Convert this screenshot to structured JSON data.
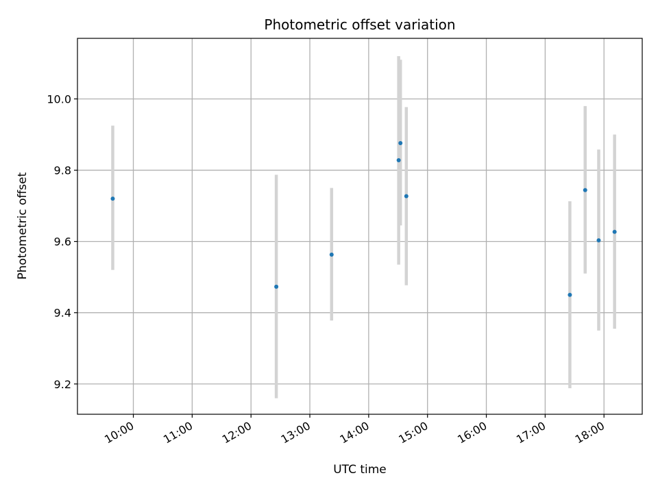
{
  "chart_data": {
    "type": "scatter",
    "title": "Photometric offset variation",
    "xlabel": "UTC time",
    "ylabel": "Photometric offset",
    "grid": true,
    "x_unit": "hour-of-day",
    "xlim": [
      9.05,
      18.65
    ],
    "ylim": [
      9.115,
      10.17
    ],
    "x_ticks": [
      {
        "value": 10,
        "label": "10:00"
      },
      {
        "value": 11,
        "label": "11:00"
      },
      {
        "value": 12,
        "label": "12:00"
      },
      {
        "value": 13,
        "label": "13:00"
      },
      {
        "value": 14,
        "label": "14:00"
      },
      {
        "value": 15,
        "label": "15:00"
      },
      {
        "value": 16,
        "label": "16:00"
      },
      {
        "value": 17,
        "label": "17:00"
      },
      {
        "value": 18,
        "label": "18:00"
      }
    ],
    "y_ticks": [
      {
        "value": 9.2,
        "label": "9.2"
      },
      {
        "value": 9.4,
        "label": "9.4"
      },
      {
        "value": 9.6,
        "label": "9.6"
      },
      {
        "value": 9.8,
        "label": "9.8"
      },
      {
        "value": 10.0,
        "label": "10.0"
      }
    ],
    "points": [
      {
        "x": 9.65,
        "y": 9.72,
        "ylow": 9.52,
        "yhigh": 9.925
      },
      {
        "x": 12.43,
        "y": 9.473,
        "ylow": 9.16,
        "yhigh": 9.787
      },
      {
        "x": 13.37,
        "y": 9.563,
        "ylow": 9.378,
        "yhigh": 9.75
      },
      {
        "x": 14.51,
        "y": 9.828,
        "ylow": 9.535,
        "yhigh": 10.12
      },
      {
        "x": 14.54,
        "y": 9.876,
        "ylow": 9.645,
        "yhigh": 10.11
      },
      {
        "x": 14.64,
        "y": 9.727,
        "ylow": 9.477,
        "yhigh": 9.977
      },
      {
        "x": 17.42,
        "y": 9.45,
        "ylow": 9.188,
        "yhigh": 9.713
      },
      {
        "x": 17.68,
        "y": 9.744,
        "ylow": 9.51,
        "yhigh": 9.98
      },
      {
        "x": 17.91,
        "y": 9.603,
        "ylow": 9.35,
        "yhigh": 9.858
      },
      {
        "x": 18.18,
        "y": 9.627,
        "ylow": 9.355,
        "yhigh": 9.9
      }
    ],
    "colors": {
      "point": "#1f77b4",
      "errorbar": "#d3d3d3",
      "grid": "#b0b0b0",
      "axes": "#000000"
    }
  }
}
